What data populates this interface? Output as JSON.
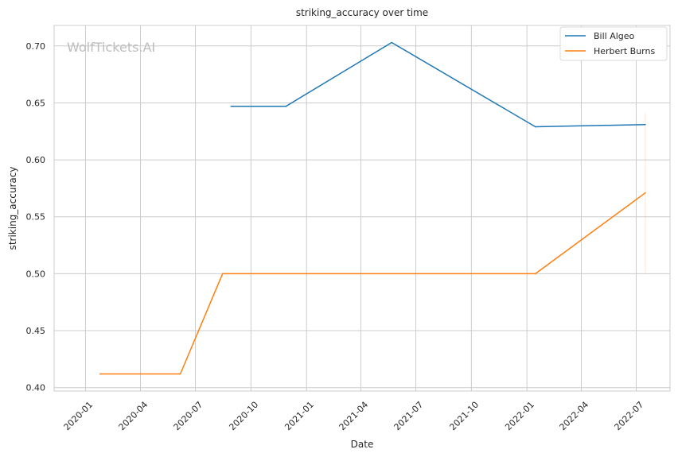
{
  "chart_data": {
    "type": "line",
    "title": "striking_accuracy over time",
    "xlabel": "Date",
    "ylabel": "striking_accuracy",
    "watermark": "WolfTickets.AI",
    "grid": true,
    "legend_position": "top-right",
    "xlim": [
      "2019-11-10",
      "2022-08-26"
    ],
    "ylim": [
      0.397,
      0.718
    ],
    "x_ticks": [
      "2020-01",
      "2020-04",
      "2020-07",
      "2020-10",
      "2021-01",
      "2021-04",
      "2021-07",
      "2021-10",
      "2022-01",
      "2022-04",
      "2022-07"
    ],
    "y_ticks": [
      "0.40",
      "0.45",
      "0.50",
      "0.55",
      "0.60",
      "0.65",
      "0.70"
    ],
    "y_tick_values": [
      0.4,
      0.45,
      0.5,
      0.55,
      0.6,
      0.65,
      0.7
    ],
    "series": [
      {
        "name": "Bill Algeo",
        "color": "#1f77b4",
        "x": [
          "2020-08-29",
          "2020-11-28",
          "2021-05-22",
          "2022-01-15",
          "2022-07-16"
        ],
        "y": [
          0.647,
          0.647,
          0.703,
          0.629,
          0.631
        ]
      },
      {
        "name": "Herbert Burns",
        "color": "#ff7f0e",
        "x": [
          "2020-01-25",
          "2020-06-06",
          "2020-08-15",
          "2022-01-15",
          "2022-07-16"
        ],
        "y": [
          0.412,
          0.412,
          0.5,
          0.5,
          0.571
        ]
      }
    ]
  }
}
